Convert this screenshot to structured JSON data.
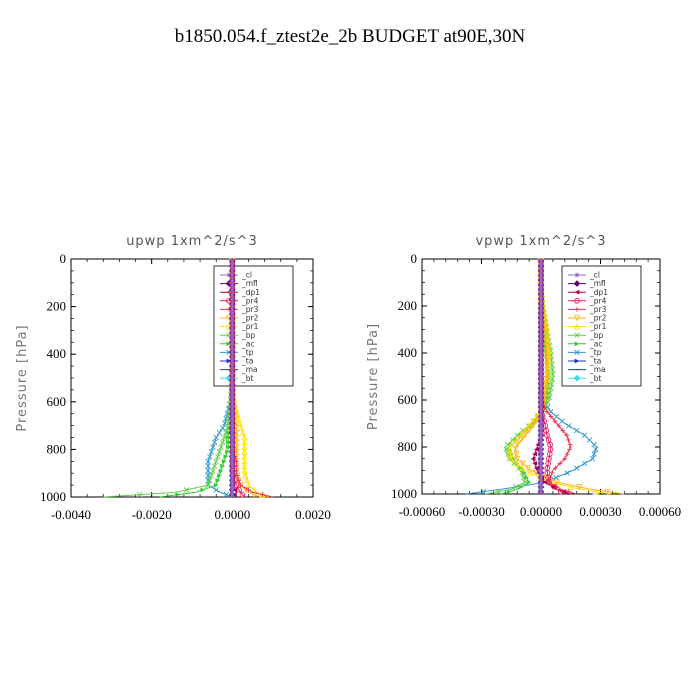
{
  "page_title": "b1850.054.f_ztest2e_2b  BUDGET at90E,30N",
  "legend_entries": [
    {
      "name": "_cl",
      "color": "#9966cc",
      "marker": "star"
    },
    {
      "name": "_mfl",
      "color": "#660066",
      "marker": "diamond"
    },
    {
      "name": "_dp1",
      "color": "#b3004d",
      "marker": "tri-left"
    },
    {
      "name": "_pr4",
      "color": "#e6195a",
      "marker": "circle"
    },
    {
      "name": "_pr3",
      "color": "#e6334d",
      "marker": "plus"
    },
    {
      "name": "_pr2",
      "color": "#ffb31a",
      "marker": "tri-down"
    },
    {
      "name": "_pr1",
      "color": "#ffe100",
      "marker": "tri-up"
    },
    {
      "name": "_bp",
      "color": "#66cc4d",
      "marker": "cross"
    },
    {
      "name": "_ac",
      "color": "#33cc33",
      "marker": "tri-right"
    },
    {
      "name": "_tp",
      "color": "#3399cc",
      "marker": "cross"
    },
    {
      "name": "_ta",
      "color": "#1a33cc",
      "marker": "tri-right"
    },
    {
      "name": "_ma",
      "color": "#1a4d80",
      "marker": "dash"
    },
    {
      "name": "_bt",
      "color": "#33ddee",
      "marker": "diamond"
    }
  ],
  "chart_data": [
    {
      "type": "line",
      "title": "upwp   1xm^2/s^3",
      "xlabel": "",
      "ylabel": "Pressure [hPa]",
      "xlim": [
        -0.004,
        0.002
      ],
      "ylim": [
        1000,
        0
      ],
      "x_ticks": [
        -0.004,
        -0.002,
        0.0,
        0.002
      ],
      "x_tick_labels": [
        "-0.0040",
        "-0.0020",
        "0.0000",
        "0.0020"
      ],
      "y_ticks": [
        0,
        200,
        400,
        600,
        800,
        1000
      ],
      "y_tick_labels": [
        "0",
        "200",
        "400",
        "600",
        "800",
        "1000"
      ],
      "legend_position": "top-right",
      "grid": false,
      "series": [
        {
          "name": "_cl",
          "levels": [
            0,
            100,
            200,
            300,
            400,
            500,
            600,
            700,
            750,
            800,
            850,
            900,
            950,
            980,
            1000
          ],
          "values": [
            0,
            0,
            0,
            0,
            0,
            0,
            0,
            0,
            0,
            0,
            0,
            0,
            0,
            0,
            0
          ]
        },
        {
          "name": "_mfl",
          "levels": [
            0,
            100,
            200,
            300,
            400,
            500,
            600,
            700,
            750,
            800,
            850,
            900,
            950,
            980,
            1000
          ],
          "values": [
            0,
            0,
            0,
            0,
            0,
            0,
            0,
            0,
            0,
            0,
            0,
            0,
            0,
            0,
            0
          ]
        },
        {
          "name": "_dp1",
          "levels": [
            0,
            100,
            200,
            300,
            400,
            500,
            600,
            700,
            750,
            800,
            850,
            900,
            950,
            980,
            1000
          ],
          "values": [
            0,
            0,
            0,
            0,
            0,
            0,
            0,
            0,
            0,
            0,
            0,
            0,
            0,
            0.0001,
            0
          ]
        },
        {
          "name": "_pr4",
          "levels": [
            0,
            100,
            200,
            300,
            400,
            500,
            600,
            700,
            750,
            800,
            850,
            900,
            950,
            980,
            1000
          ],
          "values": [
            0,
            0,
            0,
            0,
            0,
            0,
            0,
            0,
            0,
            0,
            0,
            0,
            0.0001,
            0.0002,
            0.0003
          ]
        },
        {
          "name": "_pr3",
          "levels": [
            0,
            100,
            200,
            300,
            400,
            500,
            600,
            700,
            750,
            800,
            850,
            900,
            950,
            980,
            1000
          ],
          "values": [
            0,
            0,
            0,
            0,
            0,
            0,
            0,
            0,
            0,
            0,
            0.0001,
            0.0001,
            0.0002,
            0.0005,
            0.001
          ]
        },
        {
          "name": "_pr2",
          "levels": [
            0,
            100,
            200,
            300,
            400,
            500,
            600,
            700,
            750,
            800,
            850,
            900,
            950,
            980,
            1000
          ],
          "values": [
            0,
            0,
            0,
            0,
            0,
            0,
            0,
            0.0001,
            0.0001,
            0.0001,
            0.0001,
            0.0001,
            0.0002,
            0.0004,
            0.0007
          ]
        },
        {
          "name": "_pr1",
          "levels": [
            0,
            100,
            200,
            300,
            400,
            500,
            600,
            700,
            750,
            800,
            850,
            900,
            950,
            980,
            1000
          ],
          "values": [
            0,
            0,
            0,
            0,
            0,
            0,
            5e-05,
            0.0002,
            0.0003,
            0.0003,
            0.0003,
            0.0003,
            0.0004,
            0.0006,
            0.0009
          ]
        },
        {
          "name": "_bp",
          "levels": [
            0,
            100,
            200,
            300,
            400,
            500,
            600,
            700,
            750,
            800,
            850,
            900,
            950,
            980,
            1000
          ],
          "values": [
            0,
            0,
            0,
            0,
            0,
            0,
            -5e-05,
            -0.0001,
            -0.0002,
            -0.0003,
            -0.0004,
            -0.0005,
            -0.0006,
            -0.0014,
            -0.0032
          ]
        },
        {
          "name": "_ac",
          "levels": [
            0,
            100,
            200,
            300,
            400,
            500,
            600,
            700,
            750,
            800,
            850,
            900,
            950,
            980,
            1000
          ],
          "values": [
            0,
            0,
            0,
            0,
            0,
            0,
            0,
            -5e-05,
            -0.0001,
            -0.0001,
            -0.0002,
            -0.0003,
            -0.0004,
            -0.0009,
            -0.0018
          ]
        },
        {
          "name": "_tp",
          "levels": [
            0,
            100,
            200,
            300,
            400,
            500,
            600,
            700,
            750,
            800,
            850,
            900,
            950,
            980,
            1000
          ],
          "values": [
            0,
            0,
            0,
            0,
            0,
            0,
            -5e-05,
            -0.0002,
            -0.0004,
            -0.0005,
            -0.0006,
            -0.0006,
            -0.0006,
            -0.0003,
            0
          ]
        },
        {
          "name": "_ta",
          "levels": [
            0,
            100,
            200,
            300,
            400,
            500,
            600,
            700,
            750,
            800,
            850,
            900,
            950,
            980,
            1000
          ],
          "values": [
            0,
            0,
            0,
            0,
            0,
            0,
            0,
            0,
            0,
            0,
            0,
            0,
            0,
            0,
            0
          ]
        },
        {
          "name": "_ma",
          "levels": [
            0,
            100,
            200,
            300,
            400,
            500,
            600,
            700,
            750,
            800,
            850,
            900,
            950,
            980,
            1000
          ],
          "values": [
            0,
            0,
            0,
            0,
            0,
            0,
            0,
            0,
            0,
            0,
            0,
            0,
            0,
            0,
            0
          ]
        },
        {
          "name": "_bt",
          "levels": [
            0,
            100,
            200,
            300,
            400,
            500,
            600,
            700,
            750,
            800,
            850,
            900,
            950,
            980,
            1000
          ],
          "values": [
            0,
            0,
            0,
            0,
            0,
            0,
            0,
            0,
            0,
            0,
            0,
            0,
            0,
            0,
            0
          ]
        }
      ]
    },
    {
      "type": "line",
      "title": "vpwp   1xm^2/s^3",
      "xlabel": "",
      "ylabel": "Pressure [hPa]",
      "xlim": [
        -0.0006,
        0.0006
      ],
      "ylim": [
        1000,
        0
      ],
      "x_ticks": [
        -0.0006,
        -0.0003,
        0.0,
        0.0003,
        0.0006
      ],
      "x_tick_labels": [
        "-0.00060",
        "-0.00030",
        "0.00000",
        "0.00030",
        "0.00060"
      ],
      "y_ticks": [
        0,
        200,
        400,
        600,
        800,
        1000
      ],
      "y_tick_labels": [
        "0",
        "200",
        "400",
        "600",
        "800",
        "1000"
      ],
      "legend_position": "top-right",
      "grid": false,
      "series": [
        {
          "name": "_cl",
          "levels": [
            0,
            100,
            200,
            300,
            400,
            500,
            600,
            650,
            700,
            750,
            800,
            850,
            900,
            950,
            980,
            1000
          ],
          "values": [
            0,
            0,
            0,
            0,
            0,
            0,
            0,
            0,
            0,
            0,
            0,
            0,
            0,
            0,
            0,
            0
          ]
        },
        {
          "name": "_mfl",
          "levels": [
            0,
            100,
            200,
            300,
            400,
            500,
            600,
            650,
            700,
            750,
            800,
            850,
            900,
            950,
            980,
            1000
          ],
          "values": [
            0,
            0,
            0,
            0,
            0,
            0,
            0,
            0,
            0,
            0,
            0,
            0,
            0,
            0,
            0,
            0
          ]
        },
        {
          "name": "_dp1",
          "levels": [
            0,
            100,
            200,
            300,
            400,
            500,
            600,
            650,
            700,
            750,
            800,
            850,
            900,
            950,
            980,
            1000
          ],
          "values": [
            0,
            0,
            0,
            0,
            0,
            0,
            0,
            0,
            0,
            0,
            -2e-05,
            -4e-05,
            -2e-05,
            2e-05,
            8e-05,
            0.00015
          ]
        },
        {
          "name": "_pr4",
          "levels": [
            0,
            100,
            200,
            300,
            400,
            500,
            600,
            650,
            700,
            750,
            800,
            850,
            900,
            950,
            980,
            1000
          ],
          "values": [
            0,
            0,
            0,
            0,
            0,
            0,
            0,
            0,
            2e-05,
            3e-05,
            5e-05,
            4e-05,
            3e-05,
            4e-05,
            8e-05,
            0.00012
          ]
        },
        {
          "name": "_pr3",
          "levels": [
            0,
            100,
            200,
            300,
            400,
            500,
            600,
            650,
            700,
            750,
            800,
            850,
            900,
            950,
            980,
            1000
          ],
          "values": [
            0,
            0,
            0,
            0,
            0,
            0,
            0,
            3e-05,
            8e-05,
            0.00013,
            0.00015,
            0.00012,
            6e-05,
            4e-05,
            0.0001,
            0.00018
          ]
        },
        {
          "name": "_pr2",
          "levels": [
            0,
            100,
            200,
            300,
            400,
            500,
            600,
            650,
            700,
            750,
            800,
            850,
            900,
            950,
            980,
            1000
          ],
          "values": [
            0,
            0,
            0,
            2e-05,
            3e-05,
            3e-05,
            2e-05,
            0,
            -3e-05,
            -8e-05,
            -0.00013,
            -0.00012,
            -5e-05,
            8e-05,
            0.00025,
            0.00042
          ]
        },
        {
          "name": "_pr1",
          "levels": [
            0,
            100,
            200,
            300,
            400,
            500,
            600,
            650,
            700,
            750,
            800,
            850,
            900,
            950,
            980,
            1000
          ],
          "values": [
            0,
            0,
            1e-05,
            3e-05,
            4e-05,
            3e-05,
            1e-05,
            0,
            -5e-05,
            -0.0001,
            -0.00016,
            -0.00015,
            -8e-05,
            5e-05,
            0.0002,
            0.00035
          ]
        },
        {
          "name": "_bp",
          "levels": [
            0,
            100,
            200,
            300,
            400,
            500,
            600,
            650,
            700,
            750,
            800,
            850,
            900,
            950,
            980,
            1000
          ],
          "values": [
            0,
            0,
            1e-05,
            3e-05,
            5e-05,
            6e-05,
            4e-05,
            1e-05,
            -5e-05,
            -0.00012,
            -0.00018,
            -0.00016,
            -0.0001,
            -8e-05,
            -0.00015,
            -0.00028
          ]
        },
        {
          "name": "_ac",
          "levels": [
            0,
            100,
            200,
            300,
            400,
            500,
            600,
            650,
            700,
            750,
            800,
            850,
            900,
            950,
            980,
            1000
          ],
          "values": [
            0,
            0,
            0,
            2e-05,
            3e-05,
            4e-05,
            3e-05,
            0,
            -4e-05,
            -0.0001,
            -0.00016,
            -0.00014,
            -9e-05,
            -6e-05,
            -0.00012,
            -0.0002
          ]
        },
        {
          "name": "_tp",
          "levels": [
            0,
            100,
            200,
            300,
            400,
            500,
            600,
            650,
            700,
            750,
            800,
            850,
            900,
            950,
            980,
            1000
          ],
          "values": [
            0,
            0,
            0,
            0,
            0,
            0,
            1e-05,
            5e-05,
            0.00012,
            0.00022,
            0.00028,
            0.00026,
            0.00016,
            2e-05,
            -0.0002,
            -0.00038
          ]
        },
        {
          "name": "_ta",
          "levels": [
            0,
            100,
            200,
            300,
            400,
            500,
            600,
            650,
            700,
            750,
            800,
            850,
            900,
            950,
            980,
            1000
          ],
          "values": [
            0,
            0,
            0,
            0,
            0,
            0,
            0,
            0,
            0,
            0,
            0,
            0,
            0,
            0,
            0,
            0
          ]
        },
        {
          "name": "_ma",
          "levels": [
            0,
            100,
            200,
            300,
            400,
            500,
            600,
            650,
            700,
            750,
            800,
            850,
            900,
            950,
            980,
            1000
          ],
          "values": [
            0,
            0,
            0,
            0,
            0,
            0,
            0,
            0,
            0,
            0,
            0,
            0,
            0,
            0,
            0,
            0
          ]
        },
        {
          "name": "_bt",
          "levels": [
            0,
            100,
            200,
            300,
            400,
            500,
            600,
            650,
            700,
            750,
            800,
            850,
            900,
            950,
            980,
            1000
          ],
          "values": [
            0,
            0,
            0,
            0,
            0,
            0,
            0,
            0,
            0,
            0,
            0,
            0,
            0,
            0,
            0,
            0
          ]
        }
      ]
    }
  ]
}
